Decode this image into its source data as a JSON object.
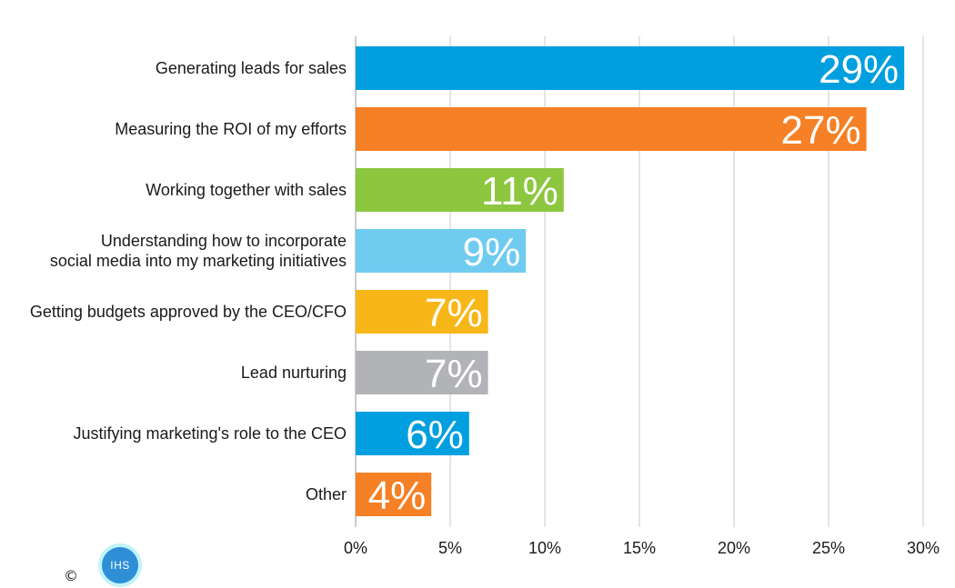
{
  "chart_data": {
    "type": "bar",
    "orientation": "horizontal",
    "categories": [
      [
        "Generating leads for sales"
      ],
      [
        "Measuring the ROI of my efforts"
      ],
      [
        "Working together with sales"
      ],
      [
        "Understanding how to incorporate",
        "social media into my marketing initiatives"
      ],
      [
        "Getting budgets approved by the CEO/CFO"
      ],
      [
        "Lead nurturing"
      ],
      [
        "Justifying marketing's role to the CEO"
      ],
      [
        "Other"
      ]
    ],
    "values": [
      29,
      27,
      11,
      9,
      7,
      7,
      6,
      4
    ],
    "value_labels": [
      "29%",
      "27%",
      "11%",
      "9%",
      "7%",
      "7%",
      "6%",
      "4%"
    ],
    "colors": [
      "#009fdf",
      "#f58025",
      "#8dc63f",
      "#6fcbf0",
      "#f7b718",
      "#b1b3b6",
      "#009fdf",
      "#f58025"
    ],
    "xlim": [
      0,
      30
    ],
    "x_ticks": [
      0,
      5,
      10,
      15,
      20,
      25,
      30
    ],
    "x_tick_labels": [
      "0%",
      "5%",
      "10%",
      "15%",
      "20%",
      "25%",
      "30%"
    ],
    "grid": "vertical",
    "grid_color": "#c8c8c8"
  },
  "footer": {
    "copyright": "©",
    "logo_text": "IHS"
  }
}
